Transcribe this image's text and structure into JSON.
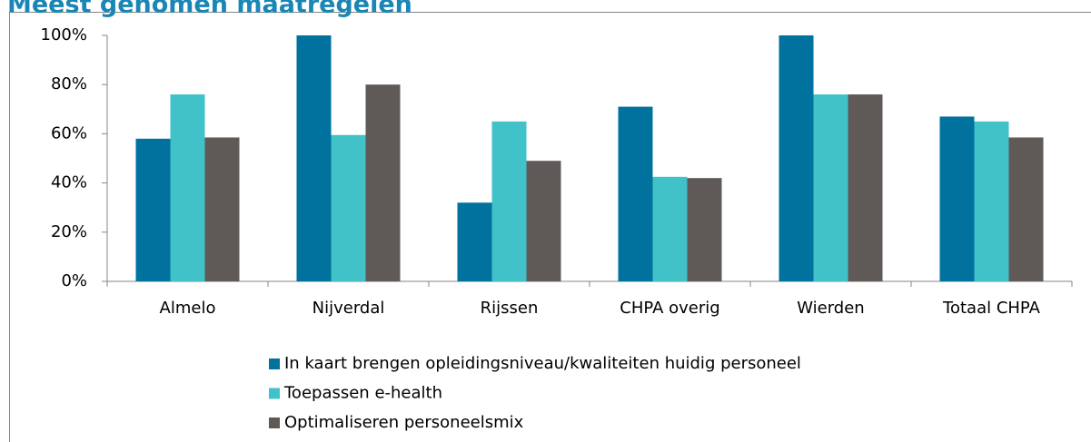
{
  "chart_data": {
    "type": "bar",
    "title": "Meest genomen maatregelen",
    "categories": [
      "Almelo",
      "Nijverdal",
      "Rijssen",
      "CHPA overig",
      "Wierden",
      "Totaal CHPA"
    ],
    "series": [
      {
        "name": "In kaart brengen opleidingsniveau/kwaliteiten huidig personeel",
        "color": "#00729d",
        "values": [
          58,
          100,
          32,
          71,
          100,
          67
        ]
      },
      {
        "name": "Toepassen e-health",
        "color": "#41c2c8",
        "values": [
          76,
          59.5,
          65,
          42.5,
          76,
          65
        ]
      },
      {
        "name": "Optimaliseren personeelsmix",
        "color": "#5f5a57",
        "values": [
          58.5,
          80,
          49,
          42,
          76,
          58.5
        ]
      }
    ],
    "ylim": [
      0,
      100
    ],
    "yticks": [
      {
        "value": 0,
        "label": "0%"
      },
      {
        "value": 20,
        "label": "20%"
      },
      {
        "value": 40,
        "label": "40%"
      },
      {
        "value": 60,
        "label": "60%"
      },
      {
        "value": 80,
        "label": "80%"
      },
      {
        "value": 100,
        "label": "100%"
      }
    ],
    "grid": false,
    "legend": "bottom"
  }
}
